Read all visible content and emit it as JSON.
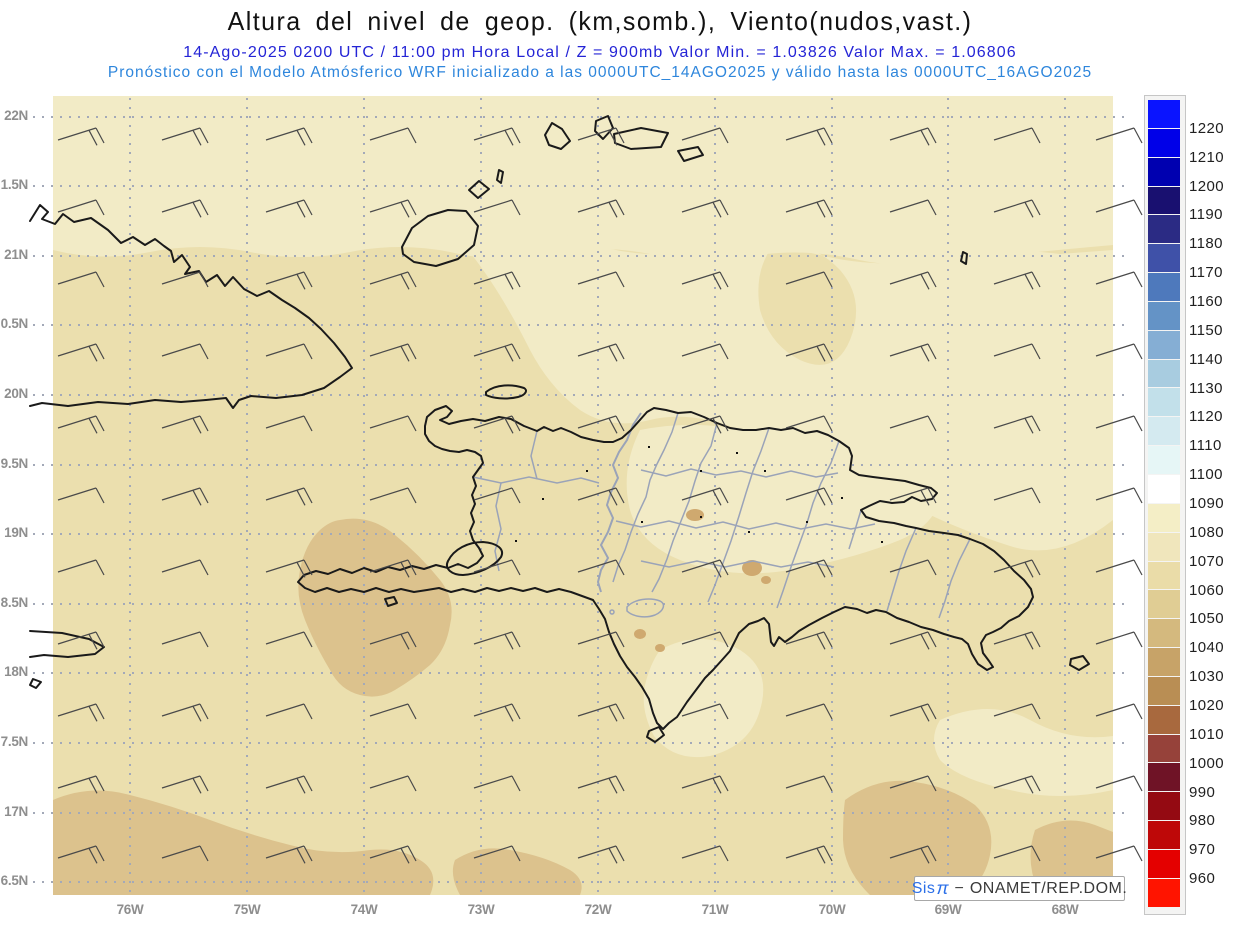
{
  "header": {
    "title": "Altura del nivel de geop. (km,somb.), Viento(nudos,vast.)",
    "subtitle1": "14-Ago-2025  0200 UTC / 11:00 pm Hora Local / Z = 900mb   Valor Min. = 1.03826   Valor Max. = 1.06806",
    "subtitle2": "Pronóstico con el Modelo Atmósferico WRF inicializado a las 0000UTC_14AGO2025 y válido hasta las  0000UTC_16AGO2025"
  },
  "info": {
    "date": "14-Ago-2025",
    "run_time": "0200 UTC",
    "local_time": "11:00 pm Hora Local",
    "level": "900mb",
    "valor_min": "1.03826",
    "valor_max": "1.06806",
    "initialized": "0000UTC_14AGO2025",
    "valid_until": "0000UTC_16AGO2025"
  },
  "x_axis": {
    "labels": [
      "76W",
      "75W",
      "74W",
      "73W",
      "72W",
      "71W",
      "70W",
      "69W",
      "68W"
    ],
    "positions": [
      130,
      247,
      364,
      481,
      598,
      715,
      832,
      948,
      1065
    ]
  },
  "y_axis": {
    "labels": [
      "22N",
      "1.5N",
      "21N",
      "0.5N",
      "20N",
      "9.5N",
      "19N",
      "8.5N",
      "18N",
      "7.5N",
      "17N",
      "6.5N"
    ],
    "positions": [
      117,
      186,
      256,
      325,
      395,
      465,
      534,
      604,
      673,
      743,
      813,
      882
    ]
  },
  "colorbar": {
    "tick_labels": [
      "1220",
      "1210",
      "1200",
      "1190",
      "1180",
      "1170",
      "1160",
      "1150",
      "1140",
      "1130",
      "1120",
      "1110",
      "1100",
      "1090",
      "1080",
      "1070",
      "1060",
      "1050",
      "1040",
      "1030",
      "1020",
      "1010",
      "1000",
      "990",
      "980",
      "970",
      "960"
    ],
    "colors": [
      "#0a14ff",
      "#0000e8",
      "#0000b0",
      "#191070",
      "#2b2b84",
      "#3f51a8",
      "#4e79bc",
      "#6493c6",
      "#85aed4",
      "#a8cce0",
      "#c2e0ea",
      "#d4eaf0",
      "#e6f6f6",
      "#ffffff",
      "#f4eec6",
      "#f0e6bc",
      "#eadca8",
      "#e0cd94",
      "#d4b97e",
      "#c7a368",
      "#b98e54",
      "#a8693e",
      "#96423a",
      "#6f1326",
      "#940a12",
      "#be0808",
      "#e40000",
      "#ff1400"
    ]
  },
  "branding": {
    "prefix": "Sis",
    "pi": "π",
    "separator": "−",
    "org": "ONAMET/REP.DOM."
  },
  "wind_barbs": {
    "columns": [
      58,
      162,
      266,
      370,
      474,
      578,
      682,
      786,
      890,
      994,
      1096
    ],
    "rows": [
      140,
      212,
      284,
      356,
      428,
      500,
      572,
      644,
      716,
      788,
      858
    ],
    "ticks": [
      [
        2,
        2,
        2,
        1,
        2,
        2,
        1,
        2,
        2,
        1,
        1
      ],
      [
        1,
        2,
        2,
        2,
        1,
        2,
        2,
        2,
        1,
        2,
        1
      ],
      [
        1,
        1,
        2,
        2,
        2,
        1,
        2,
        1,
        2,
        2,
        1
      ],
      [
        2,
        1,
        1,
        2,
        2,
        2,
        1,
        2,
        2,
        1,
        1
      ],
      [
        2,
        2,
        1,
        1,
        2,
        2,
        2,
        1,
        1,
        2,
        1
      ],
      [
        1,
        2,
        2,
        1,
        1,
        2,
        2,
        2,
        2,
        1,
        1
      ],
      [
        1,
        1,
        2,
        2,
        1,
        1,
        2,
        2,
        1,
        2,
        1
      ],
      [
        2,
        1,
        1,
        2,
        2,
        1,
        1,
        2,
        2,
        2,
        1
      ],
      [
        2,
        2,
        1,
        1,
        2,
        2,
        1,
        1,
        2,
        1,
        1
      ],
      [
        2,
        2,
        2,
        1,
        1,
        2,
        2,
        1,
        1,
        2,
        1
      ],
      [
        2,
        1,
        2,
        2,
        1,
        2,
        1,
        2,
        2,
        1,
        1
      ]
    ]
  },
  "map_colors": {
    "band_light": "#f2ebc6",
    "band_base": "#ebdfae",
    "band_dark": "#dcc28d",
    "band_darkest": "#cfa96f",
    "coast": "#1a1a1a",
    "border": "#9aa3b8",
    "grid": "#a3a9b8",
    "barb": "#4a4a4a"
  }
}
